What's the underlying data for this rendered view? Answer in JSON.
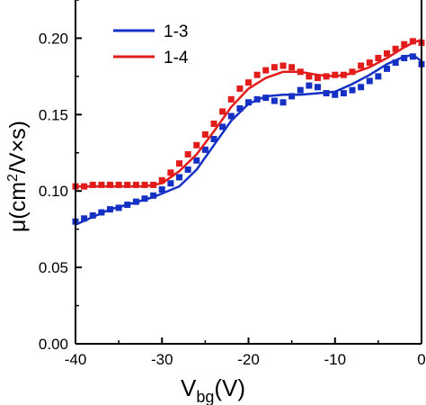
{
  "chart_data": {
    "type": "scatter",
    "title": "",
    "xlabel": {
      "main": "V",
      "sub": "bg",
      "unit": "(V)"
    },
    "ylabel": {
      "prefix": "μ(cm",
      "sup": "2",
      "suffix": "/V×s)"
    },
    "xlim": [
      -40,
      0
    ],
    "ylim": [
      0.0,
      0.225
    ],
    "xticks": [
      -40,
      -30,
      -20,
      -10,
      0
    ],
    "xtick_labels": [
      "-40",
      "-30",
      "-20",
      "-10",
      "0"
    ],
    "yticks": [
      0.0,
      0.05,
      0.1,
      0.15,
      0.2
    ],
    "ytick_labels": [
      "0.00",
      "0.05",
      "0.10",
      "0.15",
      "0.20"
    ],
    "grid": false,
    "legend_position": "top-left",
    "series": [
      {
        "name": "1-3",
        "color": "#1531c4",
        "fit_x": [
          -40,
          -36,
          -34,
          -31,
          -28,
          -26,
          -24,
          -22,
          -20,
          -18,
          -16,
          -14,
          -12,
          -10,
          -8,
          -6,
          -4,
          -2,
          -1,
          0
        ],
        "fit_y": [
          0.078,
          0.088,
          0.091,
          0.096,
          0.103,
          0.114,
          0.13,
          0.146,
          0.157,
          0.162,
          0.163,
          0.163,
          0.164,
          0.165,
          0.17,
          0.176,
          0.183,
          0.188,
          0.189,
          0.185
        ],
        "points_x": [
          -40,
          -39,
          -38,
          -37,
          -36,
          -35,
          -34,
          -33,
          -32,
          -31,
          -30,
          -29,
          -28,
          -27,
          -26,
          -25,
          -24,
          -23,
          -22,
          -21,
          -20,
          -19,
          -18,
          -17,
          -16,
          -15,
          -14,
          -13,
          -12,
          -11,
          -10,
          -9,
          -8,
          -7,
          -6,
          -5,
          -4,
          -3,
          -2,
          -1,
          0
        ],
        "points_y": [
          0.08,
          0.082,
          0.084,
          0.086,
          0.088,
          0.089,
          0.091,
          0.093,
          0.095,
          0.097,
          0.101,
          0.105,
          0.109,
          0.114,
          0.12,
          0.127,
          0.134,
          0.142,
          0.149,
          0.154,
          0.158,
          0.16,
          0.161,
          0.159,
          0.158,
          0.162,
          0.166,
          0.169,
          0.168,
          0.164,
          0.163,
          0.164,
          0.166,
          0.168,
          0.172,
          0.175,
          0.18,
          0.184,
          0.187,
          0.188,
          0.183
        ]
      },
      {
        "name": "1-4",
        "color": "#e21b1b",
        "fit_x": [
          -40,
          -35,
          -32,
          -30,
          -28,
          -26,
          -24,
          -22,
          -20,
          -18,
          -16,
          -14,
          -12,
          -10,
          -8,
          -6,
          -4,
          -2,
          -1,
          0
        ],
        "fit_y": [
          0.103,
          0.103,
          0.103,
          0.105,
          0.113,
          0.124,
          0.139,
          0.155,
          0.167,
          0.174,
          0.178,
          0.178,
          0.176,
          0.175,
          0.177,
          0.181,
          0.187,
          0.194,
          0.197,
          0.199
        ],
        "points_x": [
          -40,
          -39,
          -38,
          -37,
          -36,
          -35,
          -34,
          -33,
          -32,
          -31,
          -30,
          -29,
          -28,
          -27,
          -26,
          -25,
          -24,
          -23,
          -22,
          -21,
          -20,
          -19,
          -18,
          -17,
          -16,
          -15,
          -14,
          -13,
          -12,
          -11,
          -10,
          -9,
          -8,
          -7,
          -6,
          -5,
          -4,
          -3,
          -2,
          -1,
          0
        ],
        "points_y": [
          0.103,
          0.103,
          0.104,
          0.104,
          0.104,
          0.104,
          0.104,
          0.104,
          0.104,
          0.104,
          0.107,
          0.112,
          0.118,
          0.124,
          0.13,
          0.137,
          0.144,
          0.152,
          0.16,
          0.167,
          0.171,
          0.176,
          0.179,
          0.181,
          0.182,
          0.181,
          0.178,
          0.175,
          0.174,
          0.175,
          0.176,
          0.176,
          0.178,
          0.182,
          0.184,
          0.187,
          0.19,
          0.193,
          0.196,
          0.198,
          0.197
        ]
      }
    ]
  }
}
